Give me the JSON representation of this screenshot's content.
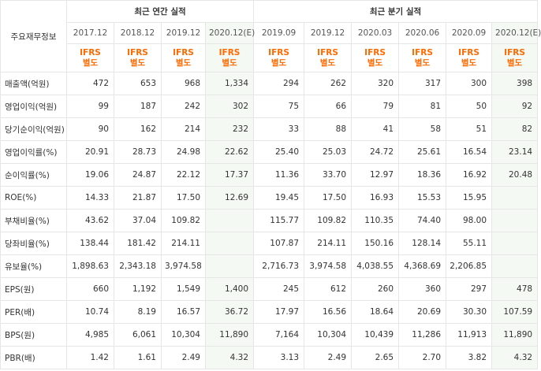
{
  "header": {
    "row_title": "주요재무정보",
    "annual_group": "최근 연간 실적",
    "quarterly_group": "최근 분기 실적",
    "periods": [
      "2017.12",
      "2018.12",
      "2019.12",
      "2020.12(E)",
      "2019.09",
      "2019.12",
      "2020.03",
      "2020.06",
      "2020.09",
      "2020.12(E)"
    ],
    "ifrs_top": "IFRS",
    "ifrs_bottom": "별도"
  },
  "rows": [
    {
      "label": "매출액(억원)",
      "values": [
        "472",
        "653",
        "968",
        "1,334",
        "294",
        "262",
        "320",
        "317",
        "300",
        "398"
      ]
    },
    {
      "label": "영업이익(억원)",
      "values": [
        "99",
        "187",
        "242",
        "302",
        "75",
        "66",
        "79",
        "81",
        "50",
        "92"
      ]
    },
    {
      "label": "당기순이익(억원)",
      "values": [
        "90",
        "162",
        "214",
        "232",
        "33",
        "88",
        "41",
        "58",
        "51",
        "82"
      ]
    },
    {
      "label": "영업이익률(%)",
      "values": [
        "20.91",
        "28.73",
        "24.98",
        "22.62",
        "25.40",
        "25.03",
        "24.72",
        "25.61",
        "16.54",
        "23.14"
      ]
    },
    {
      "label": "순이익률(%)",
      "values": [
        "19.06",
        "24.87",
        "22.12",
        "17.37",
        "11.36",
        "33.70",
        "12.97",
        "18.36",
        "16.92",
        "20.48"
      ]
    },
    {
      "label": "ROE(%)",
      "values": [
        "14.33",
        "21.87",
        "17.50",
        "12.69",
        "19.45",
        "17.50",
        "16.93",
        "15.53",
        "15.95",
        ""
      ]
    },
    {
      "label": "부채비율(%)",
      "values": [
        "43.62",
        "37.04",
        "109.82",
        "",
        "115.77",
        "109.82",
        "110.35",
        "74.40",
        "98.00",
        ""
      ]
    },
    {
      "label": "당좌비율(%)",
      "values": [
        "138.44",
        "181.42",
        "214.11",
        "",
        "107.87",
        "214.11",
        "150.16",
        "128.14",
        "55.11",
        ""
      ]
    },
    {
      "label": "유보율(%)",
      "values": [
        "1,898.63",
        "2,343.18",
        "3,974.58",
        "",
        "2,716.73",
        "3,974.58",
        "4,038.55",
        "4,368.69",
        "2,206.85",
        ""
      ]
    },
    {
      "label": "EPS(원)",
      "values": [
        "660",
        "1,192",
        "1,549",
        "1,400",
        "245",
        "612",
        "260",
        "360",
        "297",
        "478"
      ]
    },
    {
      "label": "PER(배)",
      "values": [
        "10.74",
        "8.19",
        "16.57",
        "36.72",
        "17.97",
        "16.56",
        "18.64",
        "20.69",
        "30.30",
        "107.59"
      ]
    },
    {
      "label": "BPS(원)",
      "values": [
        "4,985",
        "6,061",
        "10,304",
        "11,890",
        "7,164",
        "10,304",
        "10,439",
        "11,286",
        "11,913",
        "11,890"
      ]
    },
    {
      "label": "PBR(배)",
      "values": [
        "1.42",
        "1.61",
        "2.49",
        "4.32",
        "3.13",
        "2.49",
        "2.65",
        "2.70",
        "3.82",
        "4.32"
      ]
    }
  ]
}
